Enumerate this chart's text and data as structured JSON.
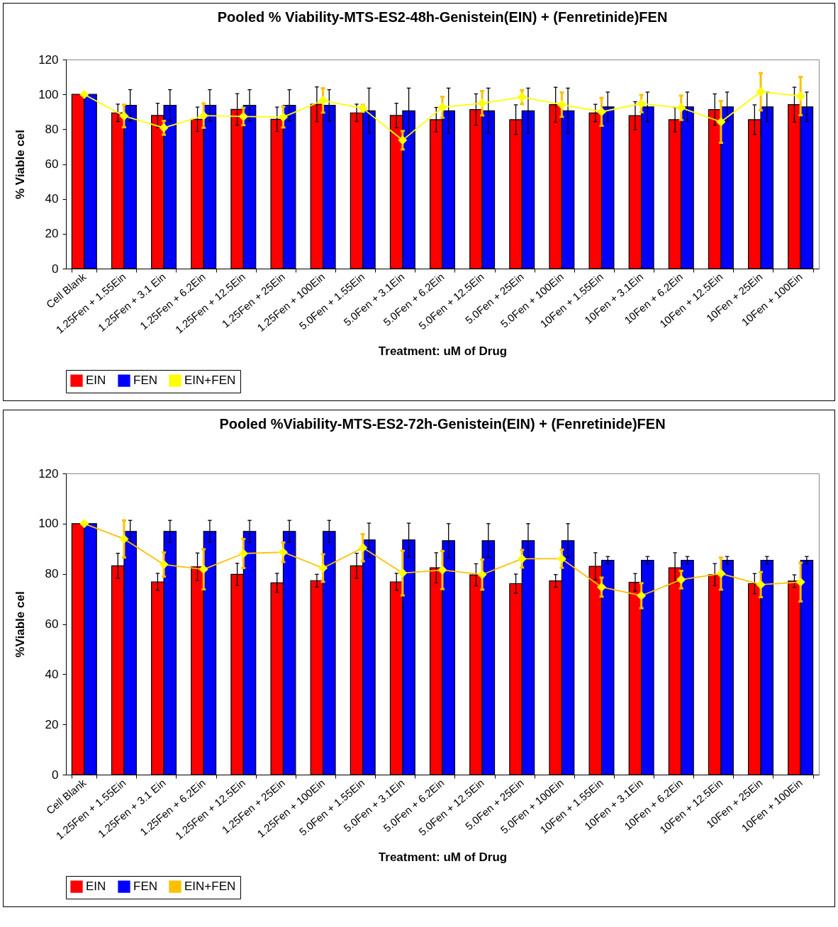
{
  "chart_data": [
    {
      "type": "bar",
      "title": "Pooled % Viability-MTS-ES2-48h-Genistein(EIN) + (Fenretinide)FEN",
      "xlabel": "Treatment: uM of Drug",
      "ylabel": "% Viable cel",
      "categories": [
        "Cell Blank",
        "1.25Fen + 1.55Ein",
        "1.25Fen + 3.1 Ein",
        "1.25Fen + 6.2Ein",
        "1.25Fen + 12.5Ein",
        "1.25Fen + 25Ein",
        "1.25Fen + 100Ein",
        "5.0Fen + 1.55Ein",
        "5.0Fen + 3.1Ein",
        "5.0Fen + 6.2Ein",
        "5.0Fen + 12.5Ein",
        "5.0Fen + 25Ein",
        "5.0Fen + 100Ein",
        "10Fen + 1.55Ein",
        "10Fen + 3.1Ein",
        "10Fen + 6.2Ein",
        "10Fen + 12.5Ein",
        "10Fen + 25Ein",
        "10Fen + 100Ein"
      ],
      "series": [
        {
          "name": "EIN",
          "color": "#ff0000",
          "values": [
            100,
            89.4,
            87.9,
            85.7,
            91.4,
            85.7,
            94.3,
            89.4,
            87.9,
            85.5,
            91.3,
            85.5,
            94.1,
            89.3,
            87.8,
            85.5,
            91.3,
            85.5,
            94.1
          ],
          "errors": [
            null,
            5,
            7,
            7,
            9,
            7,
            10,
            5,
            7,
            7,
            9,
            8.5,
            10,
            5,
            8,
            7,
            9,
            8.5,
            10
          ]
        },
        {
          "name": "FEN",
          "color": "#0000ff",
          "values": [
            100,
            93.7,
            93.7,
            93.7,
            93.7,
            93.7,
            93.7,
            90.6,
            90.6,
            90.6,
            90.6,
            90.6,
            90.6,
            92.8,
            92.8,
            92.8,
            92.8,
            92.8,
            92.8
          ],
          "errors": [
            null,
            9,
            9,
            9,
            9,
            9,
            9,
            13,
            13,
            13,
            13,
            13,
            13,
            8.5,
            8.5,
            8.5,
            8.5,
            8.5,
            8.5
          ]
        },
        {
          "name": "EIN+FEN",
          "type": "line",
          "color": "#ffff00",
          "values": [
            100,
            87.6,
            80.8,
            87.8,
            87.3,
            87,
            96.5,
            92,
            73.7,
            92.6,
            94.9,
            98.4,
            94.1,
            90,
            94.7,
            92.3,
            84.2,
            101.5,
            99
          ],
          "errors": [
            null,
            6.5,
            4,
            7,
            5,
            6,
            7,
            2,
            5.3,
            6,
            7,
            4,
            7,
            8,
            5,
            7,
            12,
            10.7,
            11
          ]
        }
      ],
      "ylim": [
        0,
        120
      ],
      "yticks": [
        0,
        20,
        40,
        60,
        80,
        100,
        120
      ],
      "legend": "bottom",
      "marker": "diamond"
    },
    {
      "type": "bar",
      "title": "Pooled %Viability-MTS-ES2-72h-Genistein(EIN) + (Fenretinide)FEN",
      "xlabel": "Treatment: uM of Drug",
      "ylabel": "%Viable cel",
      "categories": [
        "Cell Blank",
        "1.25Fen + 1.55Ein",
        "1.25Fen + 3.1 Ein",
        "1.25Fen + 6.2Ein",
        "1.25Fen + 12.5Ein",
        "1.25Fen + 25Ein",
        "1.25Fen + 100Ein",
        "5.0Fen + 1.55Ein",
        "5.0Fen + 3.1Ein",
        "5.0Fen + 6.2Ein",
        "5.0Fen + 12.5Ein",
        "5.0Fen + 25Ein",
        "5.0Fen + 100Ein",
        "10Fen + 1.55Ein",
        "10Fen + 3.1Ein",
        "10Fen + 6.2Ein",
        "10Fen + 12.5Ein",
        "10Fen + 25Ein",
        "10Fen + 100Ein"
      ],
      "series": [
        {
          "name": "EIN",
          "color": "#ff0000",
          "values": [
            100,
            83.2,
            76.8,
            82.8,
            79.8,
            76.4,
            77.3,
            83.2,
            76.8,
            82.4,
            79.6,
            76.1,
            77.2,
            83,
            76.6,
            82.4,
            79.7,
            76.1,
            77.1
          ],
          "errors": [
            null,
            5,
            3.4,
            5.5,
            4.4,
            3.8,
            2.5,
            5,
            3.4,
            6,
            4.4,
            3.8,
            2.5,
            5.4,
            3.5,
            6,
            4.4,
            4,
            2.5
          ]
        },
        {
          "name": "FEN",
          "color": "#0000ff",
          "values": [
            100,
            96.9,
            96.9,
            96.9,
            96.9,
            96.9,
            96.9,
            93.5,
            93.5,
            93.2,
            93.2,
            93.2,
            93.2,
            85.4,
            85.4,
            85.4,
            85.4,
            85.4,
            85.4
          ],
          "errors": [
            null,
            4.4,
            4.4,
            4.4,
            4.4,
            4.4,
            4.4,
            6.7,
            6.7,
            6.8,
            6.8,
            6.8,
            6.8,
            1.5,
            1.5,
            1.5,
            1.5,
            1.5,
            1.5
          ]
        },
        {
          "name": "EIN+FEN",
          "type": "line",
          "color": "#ffc000",
          "values": [
            100,
            93.9,
            83.7,
            81.8,
            88.1,
            88.6,
            82.3,
            90.4,
            80.3,
            81.5,
            79.7,
            86,
            86,
            74.7,
            71.3,
            77.7,
            80.1,
            75.7,
            76.7
          ],
          "errors": [
            null,
            7.4,
            4.8,
            8,
            5.8,
            3.9,
            5.5,
            5.4,
            8.9,
            7.6,
            6,
            3.5,
            3.6,
            3.8,
            5,
            3.5,
            6.4,
            5,
            7.7
          ]
        }
      ],
      "ylim": [
        0,
        120
      ],
      "yticks": [
        0,
        20,
        40,
        60,
        80,
        100,
        120
      ],
      "legend": "bottom",
      "marker": "diamond"
    }
  ]
}
